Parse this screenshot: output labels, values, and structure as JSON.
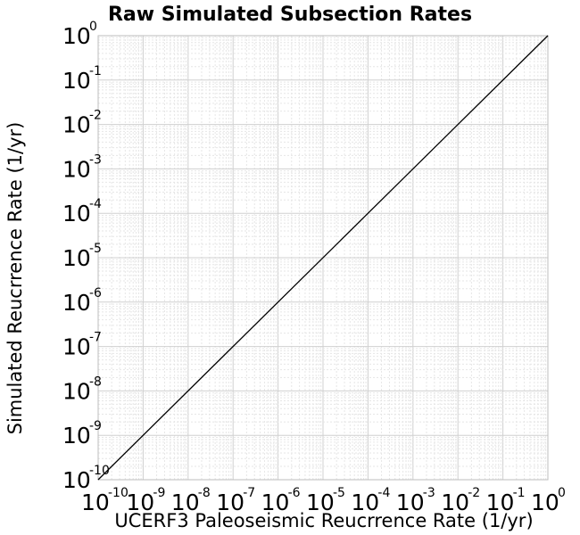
{
  "chart_data": {
    "type": "line",
    "title": "Raw Simulated Subsection Rates",
    "xlabel": "UCERF3 Paleoseismic Reucrrence Rate (1/yr)",
    "ylabel": "Simulated Reucrrence Rate (1/yr)",
    "xscale": "log",
    "yscale": "log",
    "xlim": [
      1e-10,
      1
    ],
    "ylim": [
      1e-10,
      1
    ],
    "grid": true,
    "tick_base": "10",
    "xticks": [
      "-10",
      "-9",
      "-8",
      "-7",
      "-6",
      "-5",
      "-4",
      "-3",
      "-2",
      "-1",
      "0"
    ],
    "yticks": [
      "-10",
      "-9",
      "-8",
      "-7",
      "-6",
      "-5",
      "-4",
      "-3",
      "-2",
      "-1",
      "0"
    ],
    "series": [
      {
        "x": [
          1e-10,
          1
        ],
        "y": [
          1e-10,
          1
        ],
        "color": "#000000"
      }
    ]
  }
}
